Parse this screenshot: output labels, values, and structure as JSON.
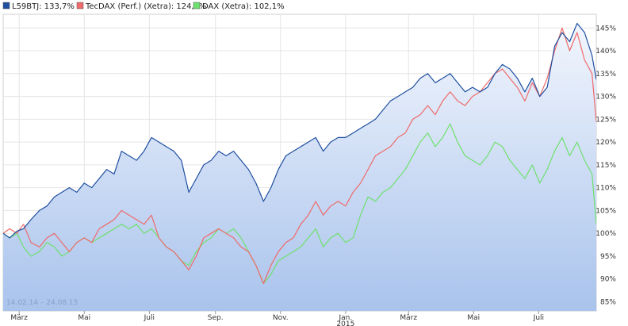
{
  "colors": {
    "L59BTJ": "#1f4fa0",
    "TecDAX": "#ef6a6a",
    "DAX": "#6ee06e",
    "fill_top": "#f2f6fd",
    "fill_bottom": "#a9c3ec",
    "grid": "#e4e4e4"
  },
  "legend": {
    "items": [
      {
        "label": "L59BTJ: 133,7%",
        "color_key": "L59BTJ"
      },
      {
        "label": "TecDAX (Perf.) (Xetra): 124,5%",
        "color_key": "TecDAX"
      },
      {
        "label": "DAX (Xetra): 102,1%",
        "color_key": "DAX"
      }
    ]
  },
  "range_label": "14.02.14 – 24.08.15",
  "chart_data": {
    "type": "line",
    "y_unit": "%",
    "ylim": [
      83,
      148
    ],
    "yticks": [
      "85%",
      "90%",
      "95%",
      "100%",
      "105%",
      "110%",
      "115%",
      "120%",
      "125%",
      "130%",
      "135%",
      "140%",
      "145%"
    ],
    "ytick_values": [
      85,
      90,
      95,
      100,
      105,
      110,
      115,
      120,
      125,
      130,
      135,
      140,
      145
    ],
    "xlim": [
      "2014-02-14",
      "2015-08-24"
    ],
    "xticks": [
      {
        "label": "März",
        "date": "2014-03-01"
      },
      {
        "label": "Mai",
        "date": "2014-05-01"
      },
      {
        "label": "Juli",
        "date": "2014-07-01"
      },
      {
        "label": "Sep.",
        "date": "2014-09-01"
      },
      {
        "label": "Nov.",
        "date": "2014-11-01"
      },
      {
        "label": "Jan.",
        "date": "2015-01-01"
      },
      {
        "label": "März",
        "date": "2015-03-01"
      },
      {
        "label": "Mai",
        "date": "2015-05-01"
      },
      {
        "label": "Juli",
        "date": "2015-07-01"
      }
    ],
    "year_label": {
      "label": "2015",
      "date": "2015-01-01"
    },
    "grid": true,
    "legend_position": "top",
    "series": [
      {
        "name": "L59BTJ: 133,7%",
        "color_key": "L59BTJ",
        "filled": true,
        "points": [
          [
            "2014-02-14",
            100
          ],
          [
            "2014-02-20",
            99
          ],
          [
            "2014-02-27",
            100.5
          ],
          [
            "2014-03-05",
            101
          ],
          [
            "2014-03-12",
            103
          ],
          [
            "2014-03-20",
            105
          ],
          [
            "2014-03-27",
            106
          ],
          [
            "2014-04-03",
            108
          ],
          [
            "2014-04-10",
            109
          ],
          [
            "2014-04-17",
            110
          ],
          [
            "2014-04-24",
            109
          ],
          [
            "2014-05-01",
            111
          ],
          [
            "2014-05-08",
            110
          ],
          [
            "2014-05-15",
            112
          ],
          [
            "2014-05-22",
            114
          ],
          [
            "2014-05-29",
            113
          ],
          [
            "2014-06-05",
            118
          ],
          [
            "2014-06-12",
            117
          ],
          [
            "2014-06-19",
            116
          ],
          [
            "2014-06-26",
            118
          ],
          [
            "2014-07-03",
            121
          ],
          [
            "2014-07-10",
            120
          ],
          [
            "2014-07-17",
            119
          ],
          [
            "2014-07-24",
            118
          ],
          [
            "2014-07-31",
            116
          ],
          [
            "2014-08-07",
            109
          ],
          [
            "2014-08-14",
            112
          ],
          [
            "2014-08-21",
            115
          ],
          [
            "2014-08-28",
            116
          ],
          [
            "2014-09-04",
            118
          ],
          [
            "2014-09-11",
            117
          ],
          [
            "2014-09-18",
            118
          ],
          [
            "2014-09-25",
            116
          ],
          [
            "2014-10-02",
            114
          ],
          [
            "2014-10-09",
            111
          ],
          [
            "2014-10-16",
            107
          ],
          [
            "2014-10-23",
            110
          ],
          [
            "2014-10-30",
            114
          ],
          [
            "2014-11-06",
            117
          ],
          [
            "2014-11-13",
            118
          ],
          [
            "2014-11-20",
            119
          ],
          [
            "2014-11-27",
            120
          ],
          [
            "2014-12-04",
            121
          ],
          [
            "2014-12-11",
            118
          ],
          [
            "2014-12-18",
            120
          ],
          [
            "2014-12-25",
            121
          ],
          [
            "2015-01-01",
            121
          ],
          [
            "2015-01-08",
            122
          ],
          [
            "2015-01-15",
            123
          ],
          [
            "2015-01-22",
            124
          ],
          [
            "2015-01-29",
            125
          ],
          [
            "2015-02-05",
            127
          ],
          [
            "2015-02-12",
            129
          ],
          [
            "2015-02-19",
            130
          ],
          [
            "2015-02-26",
            131
          ],
          [
            "2015-03-05",
            132
          ],
          [
            "2015-03-12",
            134
          ],
          [
            "2015-03-19",
            135
          ],
          [
            "2015-03-26",
            133
          ],
          [
            "2015-04-02",
            134
          ],
          [
            "2015-04-09",
            135
          ],
          [
            "2015-04-16",
            133
          ],
          [
            "2015-04-23",
            131
          ],
          [
            "2015-04-30",
            132
          ],
          [
            "2015-05-07",
            131
          ],
          [
            "2015-05-14",
            132
          ],
          [
            "2015-05-21",
            135
          ],
          [
            "2015-05-28",
            137
          ],
          [
            "2015-06-04",
            136
          ],
          [
            "2015-06-11",
            134
          ],
          [
            "2015-06-18",
            131
          ],
          [
            "2015-06-25",
            134
          ],
          [
            "2015-07-02",
            130
          ],
          [
            "2015-07-09",
            132
          ],
          [
            "2015-07-16",
            141
          ],
          [
            "2015-07-23",
            144
          ],
          [
            "2015-07-30",
            142
          ],
          [
            "2015-08-06",
            146
          ],
          [
            "2015-08-13",
            144
          ],
          [
            "2015-08-20",
            139
          ],
          [
            "2015-08-24",
            133.7
          ]
        ]
      },
      {
        "name": "TecDAX (Perf.) (Xetra): 124,5%",
        "color_key": "TecDAX",
        "filled": false,
        "points": [
          [
            "2014-02-14",
            100
          ],
          [
            "2014-02-20",
            101
          ],
          [
            "2014-02-27",
            100
          ],
          [
            "2014-03-05",
            102
          ],
          [
            "2014-03-12",
            98
          ],
          [
            "2014-03-20",
            97
          ],
          [
            "2014-03-27",
            99
          ],
          [
            "2014-04-03",
            100
          ],
          [
            "2014-04-10",
            98
          ],
          [
            "2014-04-17",
            96
          ],
          [
            "2014-04-24",
            98
          ],
          [
            "2014-05-01",
            99
          ],
          [
            "2014-05-08",
            98
          ],
          [
            "2014-05-15",
            101
          ],
          [
            "2014-05-22",
            102
          ],
          [
            "2014-05-29",
            103
          ],
          [
            "2014-06-05",
            105
          ],
          [
            "2014-06-12",
            104
          ],
          [
            "2014-06-19",
            103
          ],
          [
            "2014-06-26",
            102
          ],
          [
            "2014-07-03",
            104
          ],
          [
            "2014-07-10",
            99
          ],
          [
            "2014-07-17",
            97
          ],
          [
            "2014-07-24",
            96
          ],
          [
            "2014-07-31",
            94
          ],
          [
            "2014-08-07",
            92
          ],
          [
            "2014-08-14",
            95
          ],
          [
            "2014-08-21",
            99
          ],
          [
            "2014-08-28",
            100
          ],
          [
            "2014-09-04",
            101
          ],
          [
            "2014-09-11",
            100
          ],
          [
            "2014-09-18",
            99
          ],
          [
            "2014-09-25",
            97
          ],
          [
            "2014-10-02",
            96
          ],
          [
            "2014-10-09",
            93
          ],
          [
            "2014-10-16",
            89
          ],
          [
            "2014-10-23",
            93
          ],
          [
            "2014-10-30",
            96
          ],
          [
            "2014-11-06",
            98
          ],
          [
            "2014-11-13",
            99
          ],
          [
            "2014-11-20",
            102
          ],
          [
            "2014-11-27",
            104
          ],
          [
            "2014-12-04",
            107
          ],
          [
            "2014-12-11",
            104
          ],
          [
            "2014-12-18",
            106
          ],
          [
            "2014-12-25",
            107
          ],
          [
            "2015-01-01",
            106
          ],
          [
            "2015-01-08",
            109
          ],
          [
            "2015-01-15",
            111
          ],
          [
            "2015-01-22",
            114
          ],
          [
            "2015-01-29",
            117
          ],
          [
            "2015-02-05",
            118
          ],
          [
            "2015-02-12",
            119
          ],
          [
            "2015-02-19",
            121
          ],
          [
            "2015-02-26",
            122
          ],
          [
            "2015-03-05",
            125
          ],
          [
            "2015-03-12",
            126
          ],
          [
            "2015-03-19",
            128
          ],
          [
            "2015-03-26",
            126
          ],
          [
            "2015-04-02",
            129
          ],
          [
            "2015-04-09",
            131
          ],
          [
            "2015-04-16",
            129
          ],
          [
            "2015-04-23",
            128
          ],
          [
            "2015-04-30",
            130
          ],
          [
            "2015-05-07",
            131
          ],
          [
            "2015-05-14",
            133
          ],
          [
            "2015-05-21",
            135
          ],
          [
            "2015-05-28",
            136
          ],
          [
            "2015-06-04",
            134
          ],
          [
            "2015-06-11",
            132
          ],
          [
            "2015-06-18",
            129
          ],
          [
            "2015-06-25",
            133
          ],
          [
            "2015-07-02",
            130
          ],
          [
            "2015-07-09",
            134
          ],
          [
            "2015-07-16",
            140
          ],
          [
            "2015-07-23",
            145
          ],
          [
            "2015-07-30",
            140
          ],
          [
            "2015-08-06",
            144
          ],
          [
            "2015-08-13",
            138
          ],
          [
            "2015-08-20",
            135
          ],
          [
            "2015-08-24",
            124.5
          ]
        ]
      },
      {
        "name": "DAX (Xetra): 102,1%",
        "color_key": "DAX",
        "filled": false,
        "points": [
          [
            "2014-02-14",
            100
          ],
          [
            "2014-02-20",
            99
          ],
          [
            "2014-02-27",
            100
          ],
          [
            "2014-03-05",
            97
          ],
          [
            "2014-03-12",
            95
          ],
          [
            "2014-03-20",
            96
          ],
          [
            "2014-03-27",
            98
          ],
          [
            "2014-04-03",
            97
          ],
          [
            "2014-04-10",
            95
          ],
          [
            "2014-04-17",
            96
          ],
          [
            "2014-04-24",
            98
          ],
          [
            "2014-05-01",
            99
          ],
          [
            "2014-05-08",
            98
          ],
          [
            "2014-05-15",
            99
          ],
          [
            "2014-05-22",
            100
          ],
          [
            "2014-05-29",
            101
          ],
          [
            "2014-06-05",
            102
          ],
          [
            "2014-06-12",
            101
          ],
          [
            "2014-06-19",
            102
          ],
          [
            "2014-06-26",
            100
          ],
          [
            "2014-07-03",
            101
          ],
          [
            "2014-07-10",
            99
          ],
          [
            "2014-07-17",
            97
          ],
          [
            "2014-07-24",
            96
          ],
          [
            "2014-07-31",
            94
          ],
          [
            "2014-08-07",
            93
          ],
          [
            "2014-08-14",
            96
          ],
          [
            "2014-08-21",
            98
          ],
          [
            "2014-08-28",
            99
          ],
          [
            "2014-09-04",
            101
          ],
          [
            "2014-09-11",
            100
          ],
          [
            "2014-09-18",
            101
          ],
          [
            "2014-09-25",
            99
          ],
          [
            "2014-10-02",
            96
          ],
          [
            "2014-10-09",
            93
          ],
          [
            "2014-10-16",
            89
          ],
          [
            "2014-10-23",
            91
          ],
          [
            "2014-10-30",
            94
          ],
          [
            "2014-11-06",
            95
          ],
          [
            "2014-11-13",
            96
          ],
          [
            "2014-11-20",
            97
          ],
          [
            "2014-11-27",
            99
          ],
          [
            "2014-12-04",
            101
          ],
          [
            "2014-12-11",
            97
          ],
          [
            "2014-12-18",
            99
          ],
          [
            "2014-12-25",
            100
          ],
          [
            "2015-01-01",
            98
          ],
          [
            "2015-01-08",
            99
          ],
          [
            "2015-01-15",
            104
          ],
          [
            "2015-01-22",
            108
          ],
          [
            "2015-01-29",
            107
          ],
          [
            "2015-02-05",
            109
          ],
          [
            "2015-02-12",
            110
          ],
          [
            "2015-02-19",
            112
          ],
          [
            "2015-02-26",
            114
          ],
          [
            "2015-03-05",
            117
          ],
          [
            "2015-03-12",
            120
          ],
          [
            "2015-03-19",
            122
          ],
          [
            "2015-03-26",
            119
          ],
          [
            "2015-04-02",
            121
          ],
          [
            "2015-04-09",
            124
          ],
          [
            "2015-04-16",
            120
          ],
          [
            "2015-04-23",
            117
          ],
          [
            "2015-04-30",
            116
          ],
          [
            "2015-05-07",
            115
          ],
          [
            "2015-05-14",
            117
          ],
          [
            "2015-05-21",
            120
          ],
          [
            "2015-05-28",
            119
          ],
          [
            "2015-06-04",
            116
          ],
          [
            "2015-06-11",
            114
          ],
          [
            "2015-06-18",
            112
          ],
          [
            "2015-06-25",
            115
          ],
          [
            "2015-07-02",
            111
          ],
          [
            "2015-07-09",
            114
          ],
          [
            "2015-07-16",
            118
          ],
          [
            "2015-07-23",
            121
          ],
          [
            "2015-07-30",
            117
          ],
          [
            "2015-08-06",
            120
          ],
          [
            "2015-08-13",
            116
          ],
          [
            "2015-08-20",
            113
          ],
          [
            "2015-08-24",
            102.1
          ]
        ]
      }
    ]
  }
}
